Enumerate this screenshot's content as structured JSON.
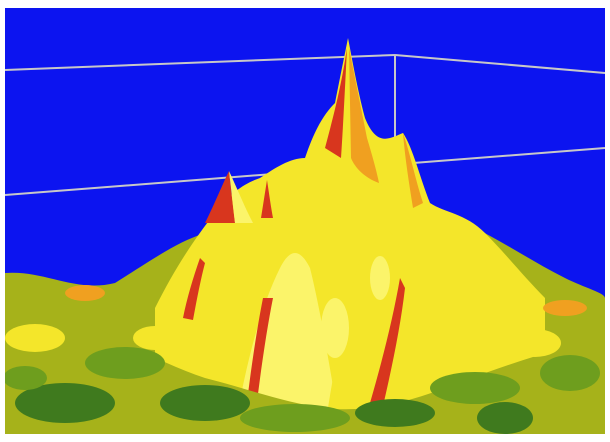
{
  "render": {
    "subject": "3D surface plot",
    "colors": {
      "background": "#ffffff",
      "sky": "#0c14f0",
      "box_lines": "#c8c8c8",
      "surface_dark_green": "#3f7a1e",
      "surface_green": "#6e9e1e",
      "surface_olive": "#a6b21a",
      "surface_yellow": "#f4e62a",
      "surface_light_yellow": "#fbf46a",
      "surface_orange": "#f0a020",
      "surface_red": "#d8361e"
    }
  }
}
